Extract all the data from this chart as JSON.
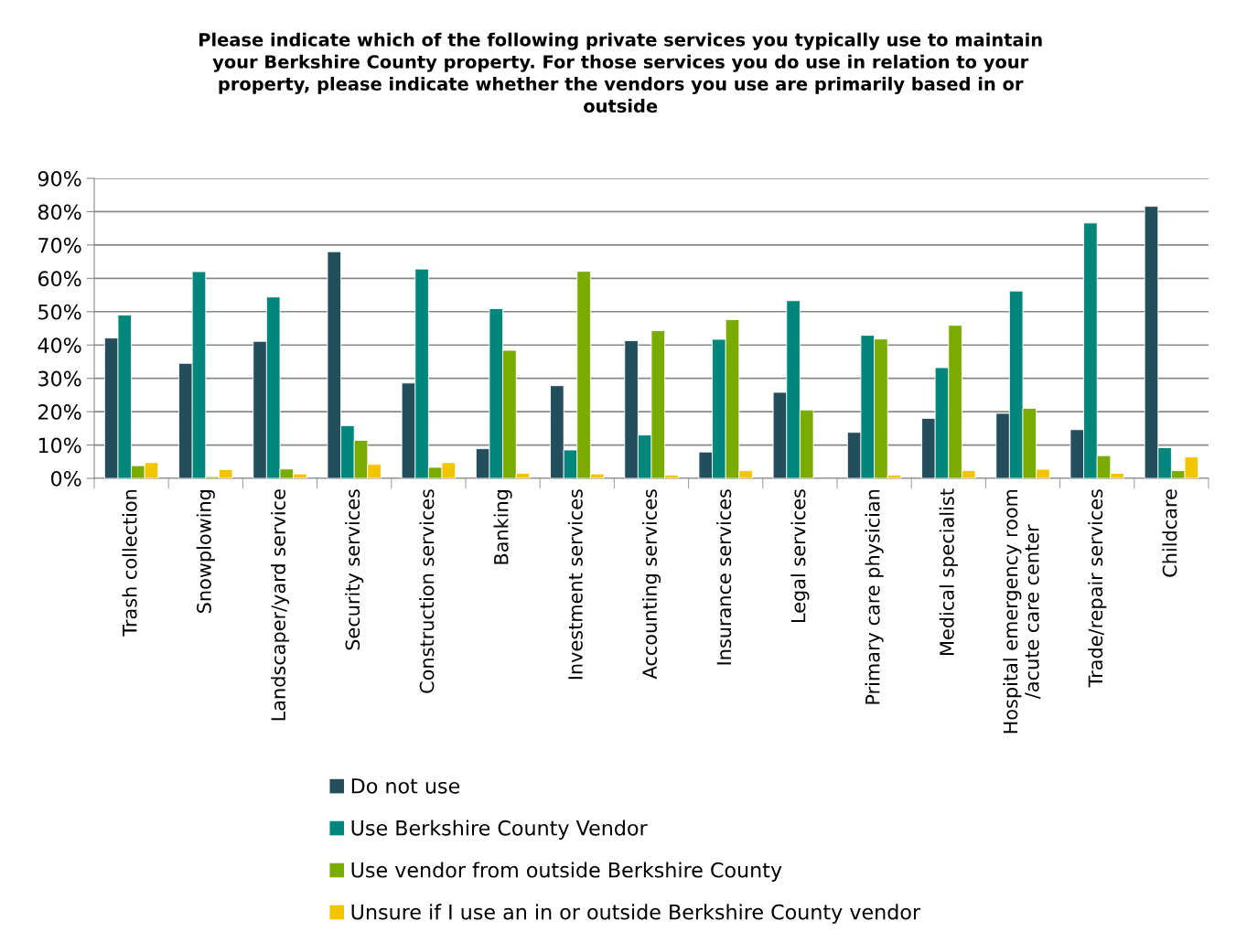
{
  "chart_data": {
    "type": "bar",
    "title": "Please indicate which of the following private services you typically use to maintain\nyour Berkshire County property. For those services you do use in relation to your\nproperty, please indicate whether the vendors you use are primarily based in or\noutside",
    "categories": [
      "Trash collection",
      "Snowplowing",
      "Landscaper/yard service",
      "Security services",
      "Construction services",
      "Banking",
      "Investment services",
      "Accounting services",
      "Insurance services",
      "Legal services",
      "Primary care physician",
      "Medical specialist",
      "Hospital emergency room\n/acute care center",
      "Trade/repair services",
      "Childcare"
    ],
    "series": [
      {
        "name": "Do not use",
        "color": "#254e5c",
        "values": [
          42.1,
          34.5,
          41.1,
          68.0,
          28.6,
          8.9,
          27.8,
          41.3,
          7.9,
          25.8,
          13.8,
          18.0,
          19.5,
          14.6,
          81.6
        ]
      },
      {
        "name": "Use Berkshire County Vendor",
        "color": "#00867b",
        "values": [
          49.0,
          62.0,
          54.4,
          15.8,
          62.8,
          50.9,
          8.5,
          13.0,
          41.7,
          53.3,
          42.9,
          33.2,
          56.2,
          76.6,
          9.2
        ]
      },
      {
        "name": "Use vendor from outside Berkshire County",
        "color": "#7aab00",
        "values": [
          3.8,
          0.5,
          2.8,
          11.4,
          3.3,
          38.4,
          62.1,
          44.3,
          47.6,
          20.5,
          41.8,
          45.9,
          21.0,
          6.8,
          2.3
        ]
      },
      {
        "name": "Unsure if I use an in or outside Berkshire County vendor",
        "color": "#f2c500",
        "values": [
          4.7,
          2.6,
          1.3,
          4.2,
          4.7,
          1.5,
          1.3,
          1.0,
          2.3,
          null,
          1.0,
          2.3,
          2.7,
          1.5,
          6.4
        ]
      }
    ],
    "ylim": [
      0,
      90
    ],
    "yticks": [
      {
        "value": 0,
        "label": "0%"
      },
      {
        "value": 10,
        "label": "10%"
      },
      {
        "value": 20,
        "label": "20%"
      },
      {
        "value": 30,
        "label": "30%"
      },
      {
        "value": 40,
        "label": "40%"
      },
      {
        "value": 50,
        "label": "50%"
      },
      {
        "value": 60,
        "label": "60%"
      },
      {
        "value": 70,
        "label": "70%"
      },
      {
        "value": 80,
        "label": "80%"
      },
      {
        "value": 90,
        "label": "90%"
      }
    ],
    "grid": "y",
    "legend": "bottom"
  }
}
